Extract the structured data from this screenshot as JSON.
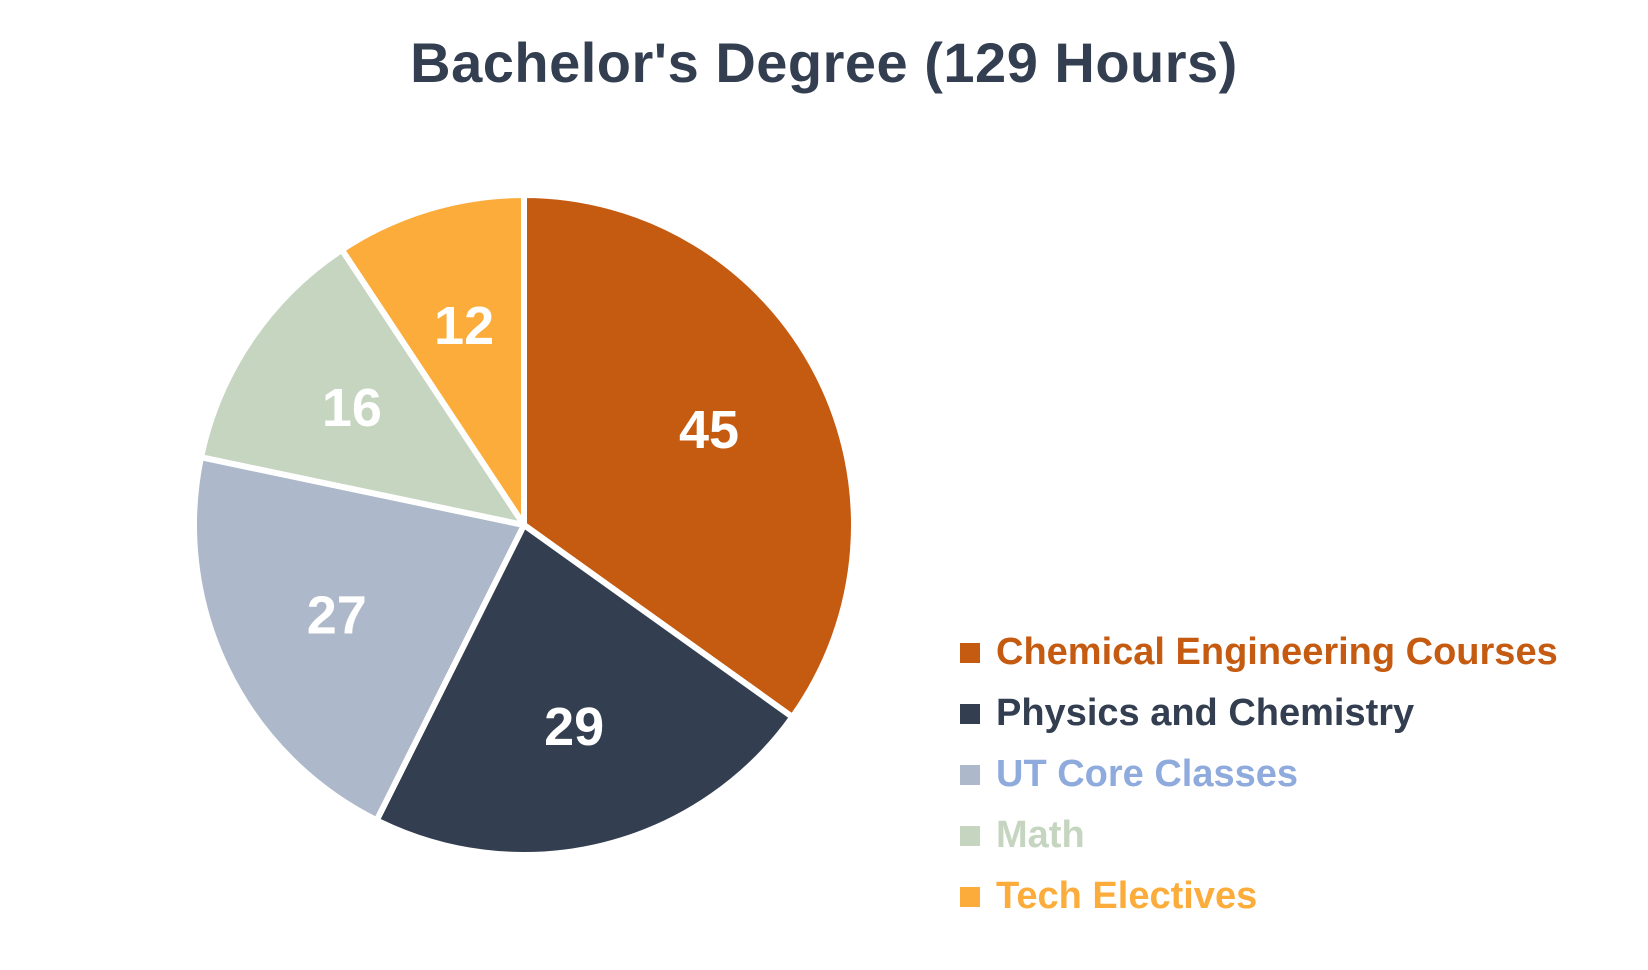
{
  "chart_data": {
    "type": "pie",
    "title": "Bachelor's Degree (129 Hours)",
    "categories": [
      "Chemical Engineering Courses",
      "Physics and Chemistry",
      "UT Core Classes",
      "Math",
      "Tech Electives"
    ],
    "values": [
      45,
      29,
      27,
      16,
      12
    ],
    "data_labels": [
      "45",
      "29",
      "27",
      "16",
      "12"
    ],
    "colors": [
      "#c55a11",
      "#333f50",
      "#adb9ca",
      "#c5d5c0",
      "#fbac3a"
    ],
    "legend_colors": [
      "#c55a11",
      "#333f50",
      "#8faadc",
      "#c5d5c0",
      "#fbac3a"
    ],
    "legend_position": "bottom-right",
    "start_angle_deg": 0,
    "direction": "clockwise"
  }
}
